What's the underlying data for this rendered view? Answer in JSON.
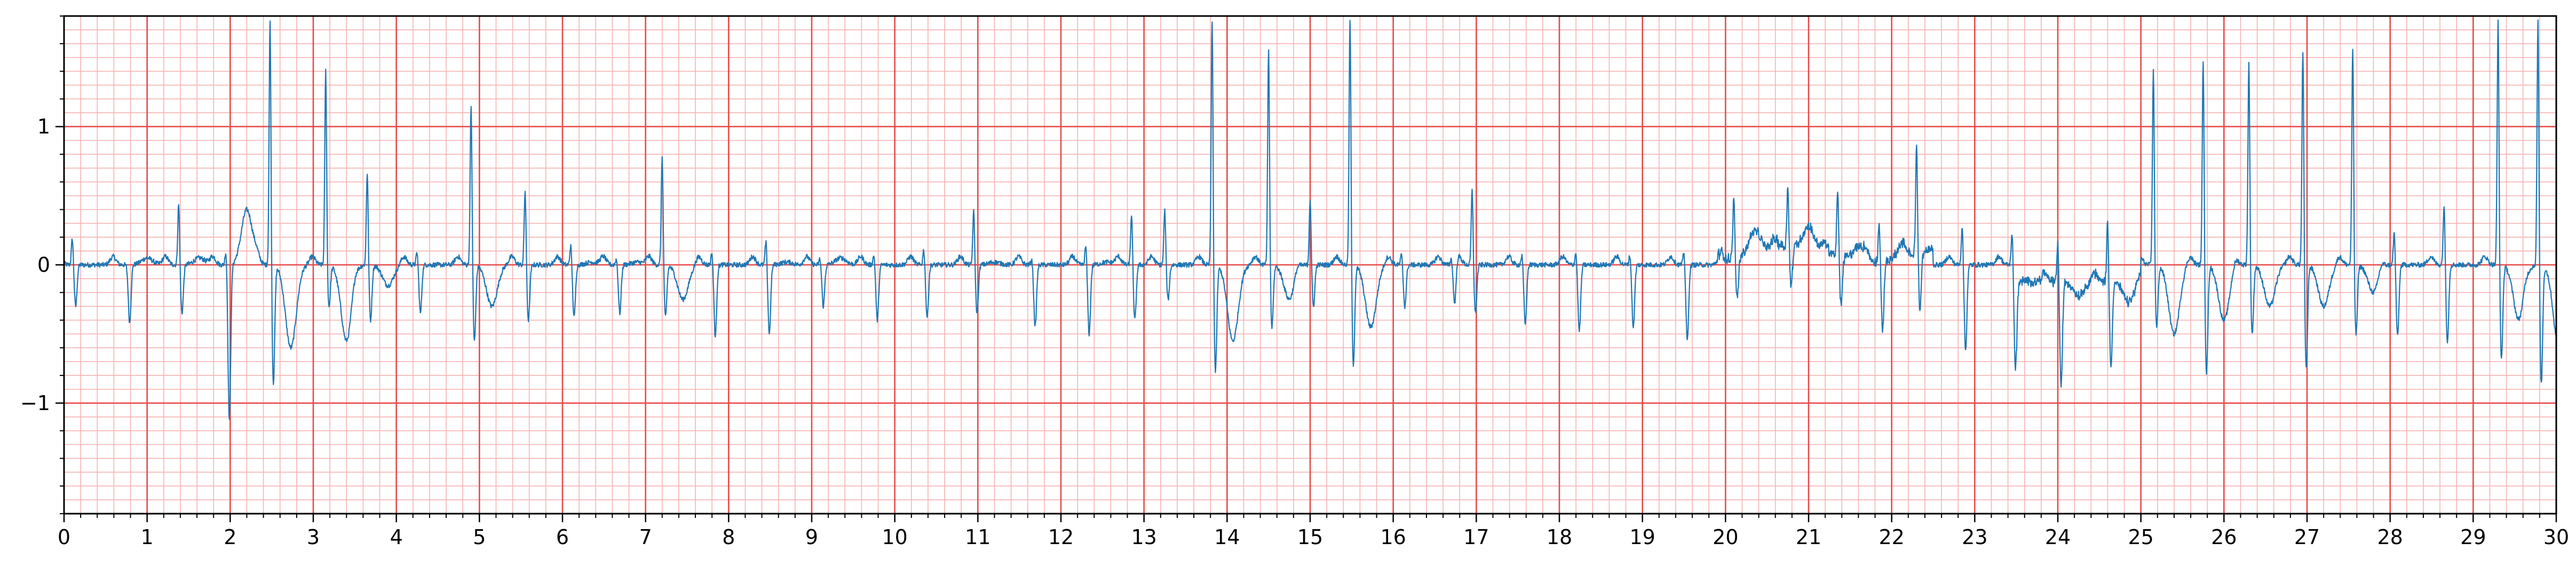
{
  "chart_data": {
    "type": "line",
    "title": "",
    "xlabel": "",
    "ylabel": "",
    "xlim": [
      0,
      30
    ],
    "ylim": [
      -1.8,
      1.8
    ],
    "x_ticks": [
      "0",
      "1",
      "2",
      "3",
      "4",
      "5",
      "6",
      "7",
      "8",
      "9",
      "10",
      "11",
      "12",
      "13",
      "14",
      "15",
      "16",
      "17",
      "18",
      "19",
      "20",
      "21",
      "22",
      "23",
      "24",
      "25",
      "26",
      "27",
      "28",
      "29",
      "30"
    ],
    "y_ticks": [
      {
        "value": -1,
        "label": "−1"
      },
      {
        "value": 0,
        "label": "0"
      },
      {
        "value": 1,
        "label": "1"
      }
    ],
    "grid": {
      "major_x": 1,
      "major_y": 1,
      "minor_x": 0.2,
      "minor_y": 0.1,
      "major_color": "#e84a4a",
      "minor_color": "#f7b2b2"
    },
    "line_color": "#1f77b4",
    "beats": [
      {
        "t": 0.1,
        "r": 0.2,
        "s": -0.3,
        "tw": 0.0
      },
      {
        "t": 0.75,
        "r": 0.0,
        "s": -0.42,
        "tw": 0.05
      },
      {
        "t": 1.38,
        "r": 0.45,
        "s": -0.35,
        "tw": 0.05
      },
      {
        "t": 1.95,
        "r": 0.12,
        "s": -1.12,
        "tw": 0.4
      },
      {
        "t": 2.48,
        "r": 1.8,
        "s": -0.85,
        "tw": -0.6
      },
      {
        "t": 3.15,
        "r": 1.42,
        "s": -0.3,
        "tw": -0.55
      },
      {
        "t": 3.65,
        "r": 0.68,
        "s": -0.4,
        "tw": -0.15
      },
      {
        "t": 4.25,
        "r": 0.1,
        "s": -0.35,
        "tw": 0.0
      },
      {
        "t": 4.9,
        "r": 1.17,
        "s": -0.55,
        "tw": -0.3
      },
      {
        "t": 5.55,
        "r": 0.55,
        "s": -0.4,
        "tw": 0.0
      },
      {
        "t": 6.1,
        "r": 0.15,
        "s": -0.38,
        "tw": 0.02
      },
      {
        "t": 6.65,
        "r": 0.05,
        "s": -0.35,
        "tw": 0.02
      },
      {
        "t": 7.2,
        "r": 0.8,
        "s": -0.38,
        "tw": -0.25
      },
      {
        "t": 7.8,
        "r": 0.1,
        "s": -0.52,
        "tw": 0.0
      },
      {
        "t": 8.45,
        "r": 0.18,
        "s": -0.5,
        "tw": 0.02
      },
      {
        "t": 9.1,
        "r": 0.05,
        "s": -0.3,
        "tw": 0.05
      },
      {
        "t": 9.75,
        "r": 0.08,
        "s": -0.4,
        "tw": 0.0
      },
      {
        "t": 10.35,
        "r": 0.12,
        "s": -0.38,
        "tw": 0.0
      },
      {
        "t": 10.95,
        "r": 0.4,
        "s": -0.35,
        "tw": 0.02
      },
      {
        "t": 11.65,
        "r": 0.05,
        "s": -0.45,
        "tw": 0.0
      },
      {
        "t": 12.3,
        "r": 0.15,
        "s": -0.5,
        "tw": 0.02
      },
      {
        "t": 12.85,
        "r": 0.38,
        "s": -0.4,
        "tw": 0.0
      },
      {
        "t": 13.25,
        "r": 0.4,
        "s": -0.25,
        "tw": 0.0
      },
      {
        "t": 13.82,
        "r": 1.8,
        "s": -0.77,
        "tw": -0.55
      },
      {
        "t": 14.5,
        "r": 1.58,
        "s": -0.45,
        "tw": -0.25
      },
      {
        "t": 15.0,
        "r": 0.48,
        "s": -0.3,
        "tw": 0.0
      },
      {
        "t": 15.48,
        "r": 1.8,
        "s": -0.72,
        "tw": -0.45
      },
      {
        "t": 16.1,
        "r": 0.08,
        "s": -0.3,
        "tw": 0.0
      },
      {
        "t": 16.7,
        "r": 0.05,
        "s": -0.3,
        "tw": 0.0
      },
      {
        "t": 16.95,
        "r": 0.55,
        "s": -0.35,
        "tw": 0.0
      },
      {
        "t": 17.55,
        "r": 0.08,
        "s": -0.43,
        "tw": 0.0
      },
      {
        "t": 18.2,
        "r": 0.1,
        "s": -0.48,
        "tw": 0.0
      },
      {
        "t": 18.85,
        "r": 0.08,
        "s": -0.45,
        "tw": 0.0
      },
      {
        "t": 19.5,
        "r": 0.1,
        "s": -0.55,
        "tw": 0.0
      },
      {
        "t": 20.1,
        "r": 0.45,
        "s": -0.3,
        "tw": 0.15
      },
      {
        "t": 20.75,
        "r": 0.45,
        "s": -0.3,
        "tw": 0.15
      },
      {
        "t": 21.35,
        "r": 0.48,
        "s": -0.35,
        "tw": 0.1
      },
      {
        "t": 21.85,
        "r": 0.3,
        "s": -0.5,
        "tw": 0.05
      },
      {
        "t": 22.3,
        "r": 0.8,
        "s": -0.4,
        "tw": 0.0
      },
      {
        "t": 22.85,
        "r": 0.3,
        "s": -0.62,
        "tw": 0.0
      },
      {
        "t": 23.45,
        "r": 0.25,
        "s": -0.75,
        "tw": 0.0
      },
      {
        "t": 24.0,
        "r": 0.3,
        "s": -0.75,
        "tw": -0.1
      },
      {
        "t": 24.6,
        "r": 0.45,
        "s": -0.6,
        "tw": -0.15
      },
      {
        "t": 25.15,
        "r": 1.42,
        "s": -0.45,
        "tw": -0.5
      },
      {
        "t": 25.75,
        "r": 1.5,
        "s": -0.78,
        "tw": -0.4
      },
      {
        "t": 26.3,
        "r": 1.48,
        "s": -0.5,
        "tw": -0.3
      },
      {
        "t": 26.95,
        "r": 1.58,
        "s": -0.75,
        "tw": -0.3
      },
      {
        "t": 27.55,
        "r": 1.57,
        "s": -0.5,
        "tw": -0.2
      },
      {
        "t": 28.05,
        "r": 0.25,
        "s": -0.52,
        "tw": 0.0
      },
      {
        "t": 28.65,
        "r": 0.45,
        "s": -0.55,
        "tw": 0.0
      },
      {
        "t": 29.3,
        "r": 1.8,
        "s": -0.68,
        "tw": -0.4
      },
      {
        "t": 29.78,
        "r": 1.8,
        "s": -0.86,
        "tw": -0.6
      }
    ]
  }
}
